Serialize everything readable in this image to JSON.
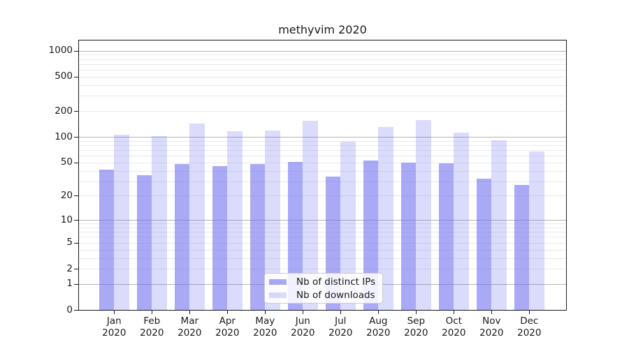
{
  "chart_data": {
    "type": "bar",
    "title": "methyvim 2020",
    "categories": [
      "Jan",
      "Feb",
      "Mar",
      "Apr",
      "May",
      "Jun",
      "Jul",
      "Aug",
      "Sep",
      "Oct",
      "Nov",
      "Dec"
    ],
    "x_tick_second_line": "2020",
    "series": [
      {
        "name": "Nb of distinct IPs",
        "fill": "rgba(104,104,238,0.57)",
        "color_hex_approx": "#a9a9f5",
        "values": [
          41,
          35,
          48,
          45,
          48,
          51,
          34,
          53,
          50,
          49,
          32,
          27
        ]
      },
      {
        "name": "Nb of downloads",
        "fill": "rgba(104,104,238,0.24)",
        "color_hex_approx": "#dbdbfa",
        "values": [
          105,
          102,
          144,
          116,
          118,
          154,
          88,
          129,
          158,
          112,
          91,
          68
        ]
      }
    ],
    "xlabel": "",
    "ylabel": "",
    "yscale": "log1p",
    "yticks": [
      1000,
      500,
      200,
      100,
      50,
      20,
      10,
      5,
      2,
      1,
      0
    ],
    "ylim": [
      0,
      1317
    ],
    "grid": true,
    "grid_major_color": "#b4b4b4",
    "grid_minor_color": "#eaeaea",
    "axis_color": "#1a1a1a",
    "legend_position": "lower-center"
  }
}
